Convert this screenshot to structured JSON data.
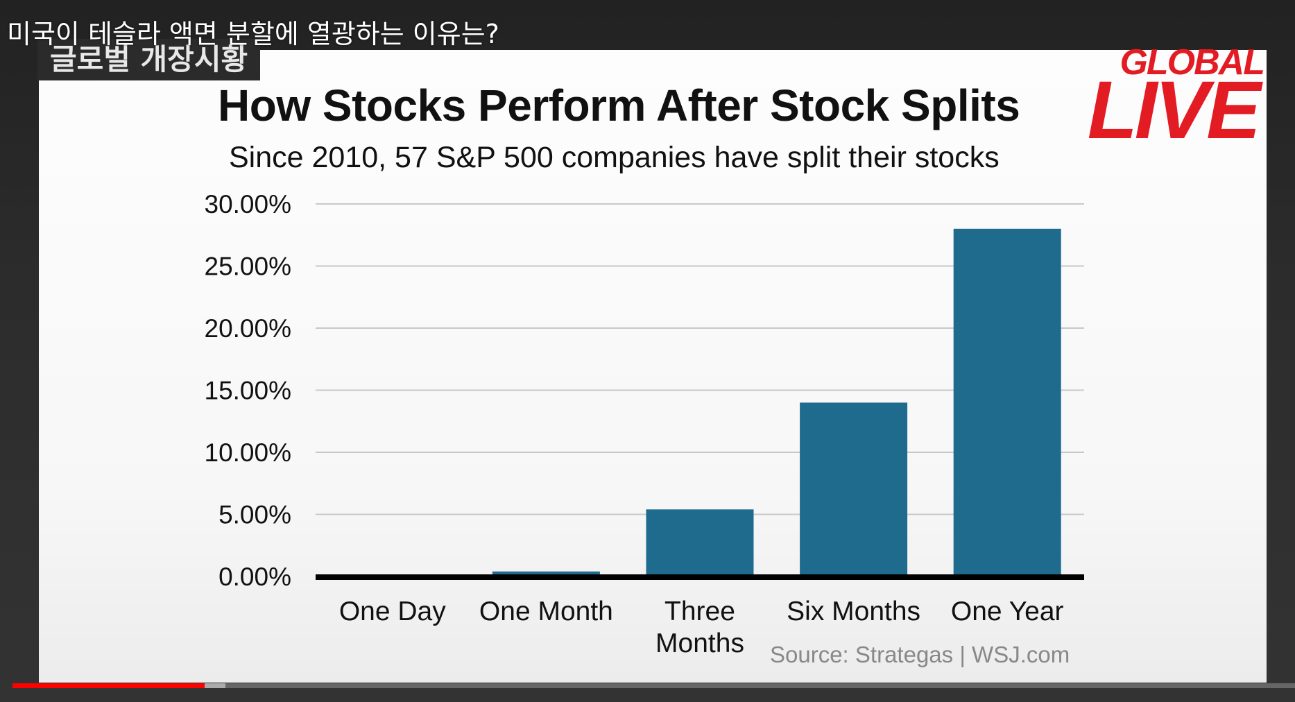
{
  "video": {
    "title": "미국이 테슬라 액면 분할에 열광하는 이유는?",
    "segment_badge": "글로벌 개장시황",
    "logo": {
      "line1": "GLOBAL",
      "line2": "LIVE"
    },
    "brand_color": "#e31b23",
    "progress": {
      "played_fraction": 0.15,
      "buffered_fraction": 0.166,
      "played_color": "#ff0000"
    }
  },
  "chart_data": {
    "type": "bar",
    "title": "How Stocks Perform After Stock Splits",
    "subtitle": "Since 2010, 57 S&P 500 companies have split their stocks",
    "source": "Source: Strategas  |  WSJ.com",
    "categories": [
      [
        "One Day"
      ],
      [
        "One Month"
      ],
      [
        "Three",
        "Months"
      ],
      [
        "Six Months"
      ],
      [
        "One Year"
      ]
    ],
    "values": [
      0.0,
      0.4,
      5.4,
      14.0,
      28.0
    ],
    "ytick_labels": [
      "0.00%",
      "5.00%",
      "10.00%",
      "15.00%",
      "20.00%",
      "25.00%",
      "30.00%"
    ],
    "yticks": [
      0,
      5,
      10,
      15,
      20,
      25,
      30
    ],
    "ylim": [
      0,
      30
    ],
    "bar_color": "#1f6b8e",
    "grid": true,
    "legend": "none"
  }
}
